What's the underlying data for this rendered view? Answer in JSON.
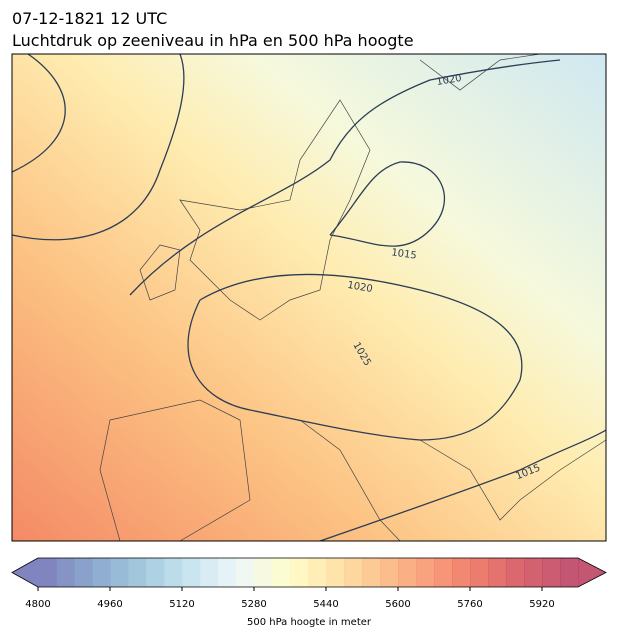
{
  "header": {
    "title_line1": "07-12-1821 12 UTC",
    "title_line2": "Luchtdruk op zeeniveau in hPa en 500 hPa hoogte"
  },
  "map": {
    "contour_labels": [
      "1020",
      "1015",
      "1020",
      "1025",
      "1015"
    ]
  },
  "colorbar": {
    "label": "500 hPa hoogte in meter",
    "lim": [
      4800,
      6000
    ],
    "ticks": [
      4800,
      4960,
      5120,
      5280,
      5440,
      5600,
      5760,
      5920
    ],
    "colors": [
      "#6b70b4",
      "#7080bb",
      "#7690c2",
      "#7da0c9",
      "#86afd0",
      "#92bdd7",
      "#a0cadf",
      "#b0d6e6",
      "#c0e0ec",
      "#d2e9f1",
      "#e2f1f4",
      "#eef6ee",
      "#f6f9dc",
      "#fcfcca",
      "#fff6ba",
      "#ffebaa",
      "#fedf9c",
      "#fdd08e",
      "#fcc182",
      "#fbb278",
      "#f9a26e",
      "#f79366",
      "#f4835f",
      "#ef7459",
      "#e86656",
      "#df5955",
      "#d44d55",
      "#ca4657",
      "#c23f59",
      "#b9395a"
    ]
  }
}
